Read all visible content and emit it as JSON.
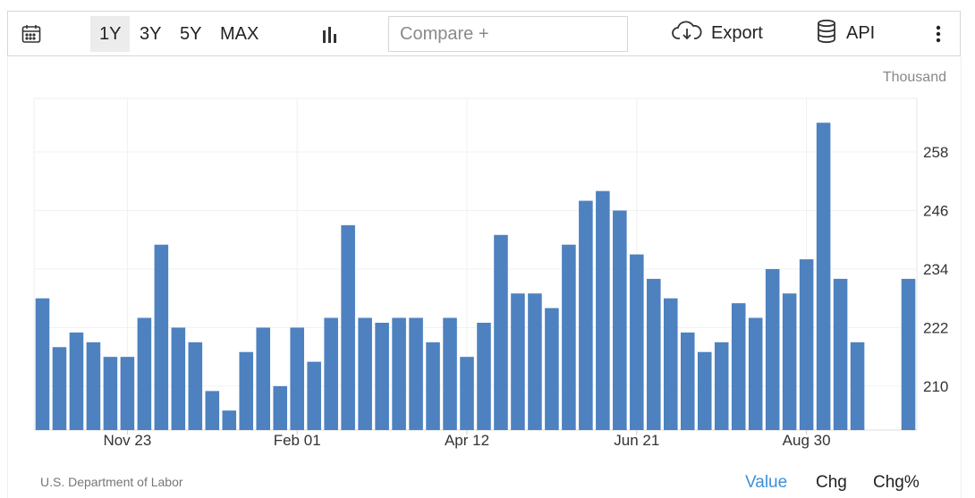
{
  "toolbar": {
    "calendar_icon": "calendar-icon",
    "ranges": [
      "1Y",
      "3Y",
      "5Y",
      "MAX"
    ],
    "active_range": "1Y",
    "chart_type_icon": "bar-chart-icon",
    "compare_placeholder": "Compare +",
    "export_label": "Export",
    "export_icon": "cloud-download-icon",
    "api_label": "API",
    "api_icon": "database-icon",
    "more_icon": "more-vertical-icon"
  },
  "unit_label": "Thousand",
  "source": "U.S. Department of Labor",
  "view_toggles": [
    "Value",
    "Chg",
    "Chg%"
  ],
  "active_toggle": "Value",
  "colors": {
    "bar": "#4e81bf",
    "accent": "#3d8fd8"
  },
  "chart_data": {
    "type": "bar",
    "x_tick_labels": [
      "Nov 23",
      "Feb 01",
      "Apr 12",
      "Jun 21",
      "Aug 30"
    ],
    "x_tick_bar_index": [
      5,
      15,
      25,
      35,
      45
    ],
    "values": [
      228,
      218,
      221,
      219,
      216,
      216,
      224,
      239,
      222,
      219,
      209,
      205,
      217,
      222,
      210,
      222,
      215,
      224,
      243,
      224,
      223,
      224,
      224,
      219,
      224,
      216,
      223,
      241,
      229,
      229,
      226,
      239,
      248,
      250,
      246,
      237,
      232,
      228,
      221,
      217,
      219,
      227,
      224,
      234,
      229,
      236,
      264,
      232,
      219,
      null,
      null,
      232
    ],
    "y_ticks": [
      210,
      222,
      234,
      246,
      258
    ],
    "ylim": [
      201,
      269
    ],
    "y_axis_position": "right",
    "grid": true
  }
}
